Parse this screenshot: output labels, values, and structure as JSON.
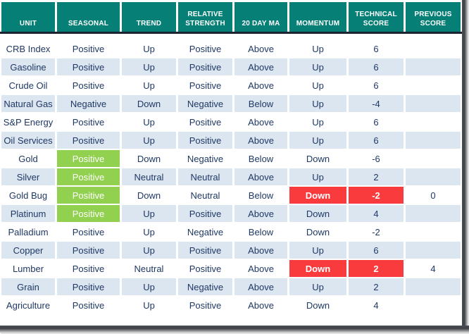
{
  "colors": {
    "header_bg": "#067F77",
    "header_text": "#FFFFFF",
    "header_rule": "#1B2430",
    "row_bg": "#FFFFFF",
    "row_alt_bg": "#DCE6F1",
    "text": "#1F3864",
    "highlight_green": "#92D050",
    "highlight_red": "#F93B3D",
    "highlight_text": "#FFFFFF"
  },
  "chart_data": {
    "type": "table",
    "columns": [
      {
        "key": "unit",
        "label": "UNIT"
      },
      {
        "key": "seasonal",
        "label": "SEASONAL"
      },
      {
        "key": "trend",
        "label": "TREND"
      },
      {
        "key": "relative_strength",
        "label": "RELATIVE STRENGTH"
      },
      {
        "key": "ma20",
        "label": "20 DAY MA"
      },
      {
        "key": "momentum",
        "label": "MOMENTUM"
      },
      {
        "key": "technical_score",
        "label": "TECHNICAL SCORE"
      },
      {
        "key": "previous_score",
        "label": "PREVIOUS SCORE"
      }
    ],
    "rows": [
      {
        "values": {
          "unit": "CRB Index",
          "seasonal": "Positive",
          "trend": "Up",
          "relative_strength": "Positive",
          "ma20": "Above",
          "momentum": "Up",
          "technical_score": "6",
          "previous_score": ""
        }
      },
      {
        "values": {
          "unit": "Gasoline",
          "seasonal": "Positive",
          "trend": "Up",
          "relative_strength": "Positive",
          "ma20": "Above",
          "momentum": "Up",
          "technical_score": "6",
          "previous_score": ""
        }
      },
      {
        "values": {
          "unit": "Crude Oil",
          "seasonal": "Positive",
          "trend": "Up",
          "relative_strength": "Positive",
          "ma20": "Above",
          "momentum": "Up",
          "technical_score": "6",
          "previous_score": ""
        }
      },
      {
        "values": {
          "unit": "Natural Gas",
          "seasonal": "Negative",
          "trend": "Down",
          "relative_strength": "Negative",
          "ma20": "Below",
          "momentum": "Up",
          "technical_score": "-4",
          "previous_score": ""
        }
      },
      {
        "values": {
          "unit": "S&P Energy",
          "seasonal": "Positive",
          "trend": "Up",
          "relative_strength": "Positive",
          "ma20": "Above",
          "momentum": "Up",
          "technical_score": "6",
          "previous_score": ""
        }
      },
      {
        "values": {
          "unit": "Oil Services",
          "seasonal": "Positive",
          "trend": "Up",
          "relative_strength": "Positive",
          "ma20": "Above",
          "momentum": "Up",
          "technical_score": "6",
          "previous_score": ""
        }
      },
      {
        "values": {
          "unit": "Gold",
          "seasonal": "Positive",
          "trend": "Down",
          "relative_strength": "Negative",
          "ma20": "Below",
          "momentum": "Down",
          "technical_score": "-6",
          "previous_score": ""
        },
        "highlights": {
          "seasonal": "green"
        }
      },
      {
        "values": {
          "unit": "Silver",
          "seasonal": "Positive",
          "trend": "Neutral",
          "relative_strength": "Neutral",
          "ma20": "Above",
          "momentum": "Up",
          "technical_score": "2",
          "previous_score": ""
        },
        "highlights": {
          "seasonal": "green"
        }
      },
      {
        "values": {
          "unit": "Gold Bug",
          "seasonal": "Positive",
          "trend": "Down",
          "relative_strength": "Neutral",
          "ma20": "Below",
          "momentum": "Down",
          "technical_score": "-2",
          "previous_score": "0"
        },
        "highlights": {
          "seasonal": "green",
          "momentum": "red",
          "technical_score": "red"
        }
      },
      {
        "values": {
          "unit": "Platinum",
          "seasonal": "Positive",
          "trend": "Up",
          "relative_strength": "Positive",
          "ma20": "Above",
          "momentum": "Down",
          "technical_score": "4",
          "previous_score": ""
        },
        "highlights": {
          "seasonal": "green"
        }
      },
      {
        "values": {
          "unit": "Palladium",
          "seasonal": "Positive",
          "trend": "Up",
          "relative_strength": "Negative",
          "ma20": "Below",
          "momentum": "Down",
          "technical_score": "-2",
          "previous_score": ""
        }
      },
      {
        "values": {
          "unit": "Copper",
          "seasonal": "Positive",
          "trend": "Up",
          "relative_strength": "Positive",
          "ma20": "Above",
          "momentum": "Up",
          "technical_score": "6",
          "previous_score": ""
        }
      },
      {
        "values": {
          "unit": "Lumber",
          "seasonal": "Positive",
          "trend": "Neutral",
          "relative_strength": "Positive",
          "ma20": "Above",
          "momentum": "Down",
          "technical_score": "2",
          "previous_score": "4"
        },
        "highlights": {
          "momentum": "red",
          "technical_score": "red"
        }
      },
      {
        "values": {
          "unit": "Grain",
          "seasonal": "Positive",
          "trend": "Up",
          "relative_strength": "Negative",
          "ma20": "Above",
          "momentum": "Up",
          "technical_score": "2",
          "previous_score": ""
        }
      },
      {
        "values": {
          "unit": "Agriculture",
          "seasonal": "Positive",
          "trend": "Up",
          "relative_strength": "Positive",
          "ma20": "Above",
          "momentum": "Down",
          "technical_score": "4",
          "previous_score": ""
        }
      }
    ]
  }
}
